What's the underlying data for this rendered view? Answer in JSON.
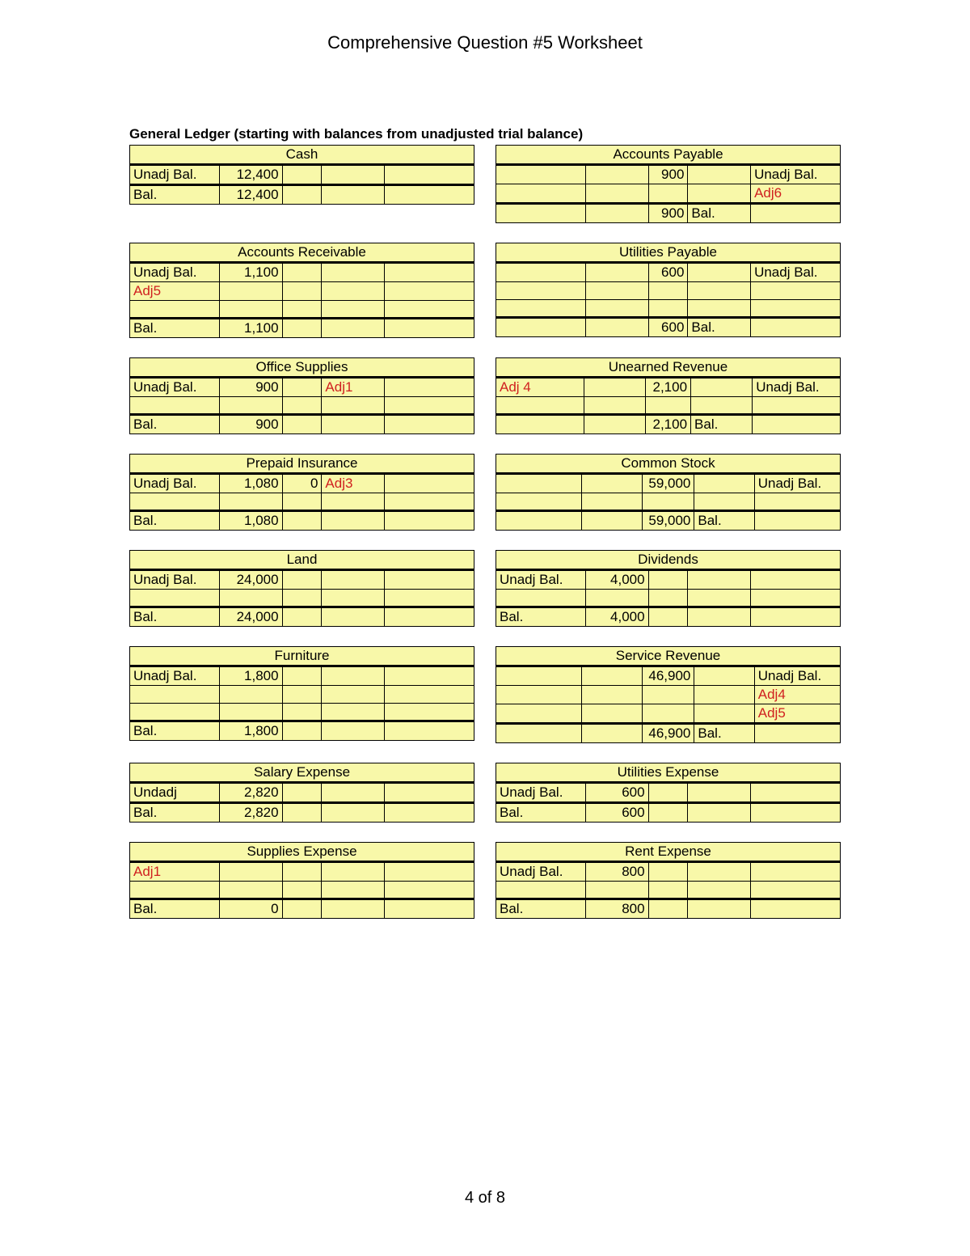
{
  "title": "Comprehensive Question #5 Worksheet",
  "section": "General Ledger (starting with balances from unadjusted trial balance)",
  "pageNum": "4 of 8",
  "colors": {
    "cellBg": "#f8f8a9",
    "border": "#000000",
    "adj": "#d02020",
    "pageBg": "#ffffff"
  },
  "labels": {
    "unadj": "Unadj Bal.",
    "undadj": "Undadj",
    "bal": "Bal."
  },
  "accounts": {
    "cash": {
      "title": "Cash",
      "unadj": "Unadj Bal.",
      "debitOpen": "12,400",
      "extra": [],
      "balDebit": "12,400"
    },
    "ap": {
      "title": "Accounts Payable",
      "unadj": "Unadj Bal.",
      "creditOpen": "900",
      "extra": [
        {
          "c5": "Adj6",
          "adj": true
        }
      ],
      "balCredit": "900",
      "balLabel": "Bal."
    },
    "ar": {
      "title": "Accounts Receivable",
      "unadj": "Unadj Bal.",
      "debitOpen": "1,100",
      "extra": [
        {
          "c1": "Adj5",
          "adj": true
        },
        {}
      ],
      "balDebit": "1,100"
    },
    "utilPay": {
      "title": "Utilities Payable",
      "unadj": "Unadj Bal.",
      "creditOpen": "600",
      "extra": [
        {},
        {}
      ],
      "balCredit": "600",
      "balLabel": "Bal."
    },
    "supplies": {
      "title": "Office Supplies",
      "unadj": "Unadj Bal.",
      "debitOpen": "900",
      "openC4": "Adj1",
      "openAdj4": true,
      "extra": [
        {}
      ],
      "balDebit": "900"
    },
    "unearned": {
      "title": "Unearned Revenue",
      "openC1": "Adj 4",
      "openAdj1": true,
      "unadj": "Unadj Bal.",
      "creditOpen": "2,100",
      "extra": [
        {}
      ],
      "balCredit": "2,100",
      "balLabel": "Bal."
    },
    "prepaid": {
      "title": "Prepaid Insurance",
      "unadj": "Unadj Bal.",
      "debitOpen": "1,080",
      "openC3": "0",
      "openC4": "Adj3",
      "openAdj4": true,
      "extra": [
        {}
      ],
      "balDebit": "1,080"
    },
    "common": {
      "title": "Common Stock",
      "unadj": "Unadj Bal.",
      "creditOpen": "59,000",
      "extra": [
        {}
      ],
      "balCredit": "59,000",
      "balLabel": "Bal."
    },
    "land": {
      "title": "Land",
      "unadj": "Unadj Bal.",
      "debitOpen": "24,000",
      "extra": [
        {}
      ],
      "balDebit": "24,000"
    },
    "dividends": {
      "title": "Dividends",
      "unadj": "Unadj Bal.",
      "debitOpen": "4,000",
      "extra": [
        {}
      ],
      "balDebit": "4,000"
    },
    "furniture": {
      "title": "Furniture",
      "unadj": "Unadj Bal.",
      "debitOpen": "1,800",
      "extra": [
        {},
        {}
      ],
      "balDebit": "1,800"
    },
    "serviceRev": {
      "title": "Service Revenue",
      "unadj": "Unadj Bal.",
      "creditOpen": "46,900",
      "extra": [
        {
          "c5": "Adj4",
          "adj": true
        },
        {
          "c5": "Adj5",
          "adj": true
        }
      ],
      "balCredit": "46,900",
      "balLabel": "Bal."
    },
    "salaryExp": {
      "title": "Salary Expense",
      "unadj": "Undadj",
      "debitOpen": "2,820",
      "extra": [],
      "balDebit": "2,820"
    },
    "utilExp": {
      "title": "Utilities Expense",
      "unadj": "Unadj Bal.",
      "debitOpen": "600",
      "extra": [],
      "balDebit": "600"
    },
    "suppliesExp": {
      "title": "Supplies Expense",
      "openC1": "Adj1",
      "openAdj1": true,
      "extra": [
        {}
      ],
      "balDebit": "0"
    },
    "rentExp": {
      "title": "Rent Expense",
      "unadj": "Unadj Bal.",
      "debitOpen": "800",
      "extra": [
        {}
      ],
      "balDebit": "800"
    }
  },
  "layout": [
    [
      "cash",
      "ap"
    ],
    [
      "ar",
      "utilPay"
    ],
    [
      "supplies",
      "unearned"
    ],
    [
      "prepaid",
      "common"
    ],
    [
      "land",
      "dividends"
    ],
    [
      "furniture",
      "serviceRev"
    ],
    [
      "salaryExp",
      "utilExp"
    ],
    [
      "suppliesExp",
      "rentExp"
    ]
  ]
}
